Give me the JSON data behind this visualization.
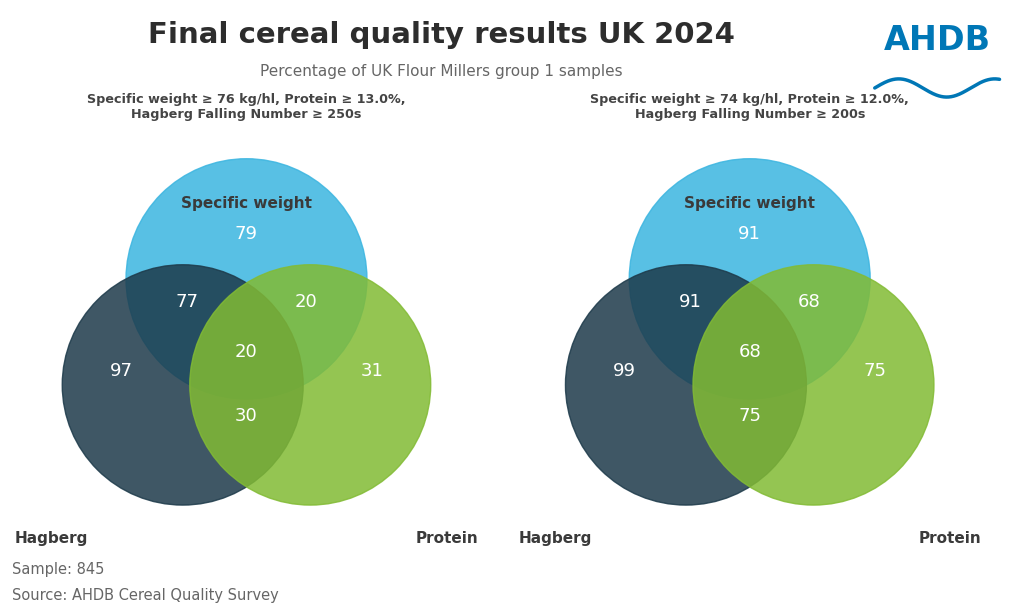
{
  "title": "Final cereal quality results UK 2024",
  "subtitle": "Percentage of UK Flour Millers group 1 samples",
  "footnote1": "Sample: 845",
  "footnote2": "Source: AHDB Cereal Quality Survey",
  "left_panel": {
    "spec_title": "Specific weight ≥ 76 kg/hl, Protein ≥ 13.0%,\nHagberg Falling Number ≥ 250s",
    "sw_only": "79",
    "hagberg_sw": "77",
    "sw_protein": "20",
    "all_three": "20",
    "hagberg_protein": "30",
    "hagberg_only": "97",
    "protein_only": "31"
  },
  "right_panel": {
    "spec_title": "Specific weight ≥ 74 kg/hl, Protein ≥ 12.0%,\nHagberg Falling Number ≥ 200s",
    "sw_only": "91",
    "hagberg_sw": "91",
    "sw_protein": "68",
    "all_three": "68",
    "hagberg_protein": "75",
    "hagberg_only": "99",
    "protein_only": "75"
  },
  "colors": {
    "sw": "#3BB5E0",
    "hagberg": "#1D3A4A",
    "protein": "#82BB34",
    "text_white": "#FFFFFF",
    "text_dark": "#3A3A3A",
    "title_color": "#2D2D2D",
    "subtitle_color": "#666666",
    "spec_color": "#444444",
    "ahdb_blue": "#0077B6",
    "background": "#FFFFFF"
  },
  "venn_label_sw": "Specific weight",
  "venn_label_hagberg": "Hagberg",
  "venn_label_protein": "Protein",
  "circle_alpha": 0.85
}
